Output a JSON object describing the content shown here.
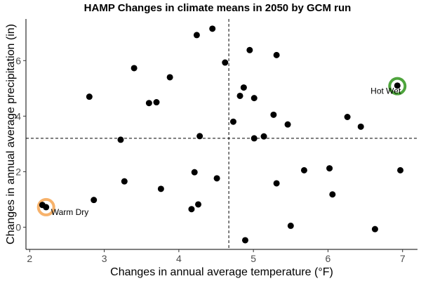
{
  "chart_data": {
    "type": "scatter",
    "title": "HAMP Changes in climate means in 2050 by GCM run",
    "xlabel": "Changes in annual average temperature (°F)",
    "ylabel": "Changes in annual average precipitation (in)",
    "xlim": [
      1.95,
      7.2
    ],
    "ylim": [
      -0.8,
      7.5
    ],
    "xticks": [
      2,
      3,
      4,
      5,
      6,
      7
    ],
    "yticks": [
      0,
      2,
      4,
      6
    ],
    "xtick_labels": [
      "2",
      "3",
      "4",
      "5",
      "6",
      "7"
    ],
    "ytick_labels": [
      "0",
      "2",
      "4",
      "6"
    ],
    "grid": false,
    "point_color": "#000000",
    "reference_lines": {
      "x": 4.67,
      "y": 3.2,
      "style": "dashed"
    },
    "points": [
      {
        "x": 2.17,
        "y": 0.8
      },
      {
        "x": 2.22,
        "y": 0.72
      },
      {
        "x": 2.86,
        "y": 0.98
      },
      {
        "x": 2.8,
        "y": 4.7
      },
      {
        "x": 3.22,
        "y": 3.15
      },
      {
        "x": 3.27,
        "y": 1.65
      },
      {
        "x": 3.4,
        "y": 5.73
      },
      {
        "x": 3.6,
        "y": 4.47
      },
      {
        "x": 3.7,
        "y": 4.5
      },
      {
        "x": 3.76,
        "y": 1.38
      },
      {
        "x": 3.88,
        "y": 5.4
      },
      {
        "x": 4.17,
        "y": 0.65
      },
      {
        "x": 4.21,
        "y": 1.98
      },
      {
        "x": 4.24,
        "y": 6.92
      },
      {
        "x": 4.26,
        "y": 0.82
      },
      {
        "x": 4.28,
        "y": 3.28
      },
      {
        "x": 4.45,
        "y": 7.15
      },
      {
        "x": 4.51,
        "y": 1.76
      },
      {
        "x": 4.62,
        "y": 5.93
      },
      {
        "x": 4.73,
        "y": 3.8
      },
      {
        "x": 4.82,
        "y": 4.73
      },
      {
        "x": 4.87,
        "y": 5.03
      },
      {
        "x": 4.89,
        "y": -0.47
      },
      {
        "x": 4.95,
        "y": 6.38
      },
      {
        "x": 5.01,
        "y": 4.65
      },
      {
        "x": 5.01,
        "y": 3.2
      },
      {
        "x": 5.14,
        "y": 3.27
      },
      {
        "x": 5.27,
        "y": 4.05
      },
      {
        "x": 5.31,
        "y": 6.2
      },
      {
        "x": 5.31,
        "y": 1.58
      },
      {
        "x": 5.46,
        "y": 3.7
      },
      {
        "x": 5.5,
        "y": 0.05
      },
      {
        "x": 5.68,
        "y": 2.05
      },
      {
        "x": 6.02,
        "y": 2.12
      },
      {
        "x": 6.06,
        "y": 1.18
      },
      {
        "x": 6.26,
        "y": 3.97
      },
      {
        "x": 6.44,
        "y": 3.62
      },
      {
        "x": 6.63,
        "y": -0.07
      },
      {
        "x": 6.93,
        "y": 5.1
      },
      {
        "x": 6.97,
        "y": 2.05
      }
    ],
    "annotations": [
      {
        "label": "Hot Wet",
        "x": 6.93,
        "y": 5.08,
        "ring_color": "#4ea43c"
      },
      {
        "label": "Warm Dry",
        "x": 2.22,
        "y": 0.72,
        "ring_color": "#f7b26b"
      }
    ]
  }
}
